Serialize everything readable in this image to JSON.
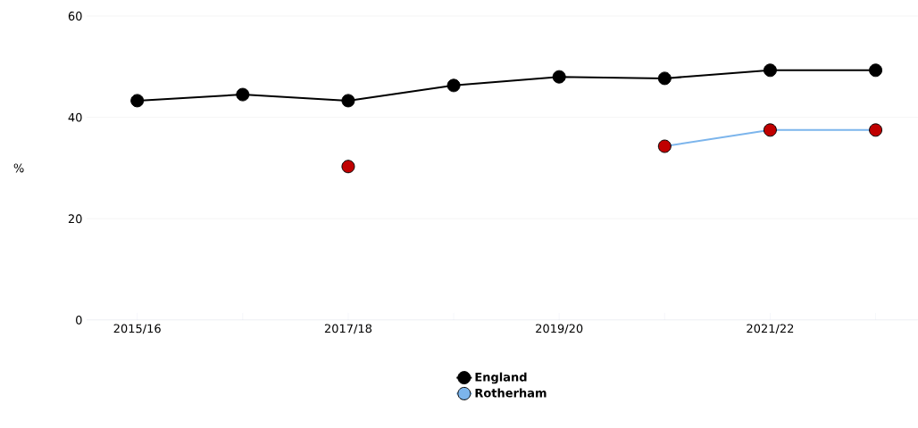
{
  "chart_data": {
    "type": "line",
    "ylabel": "%",
    "categories": [
      "2015/16",
      null,
      "2017/18",
      null,
      "2019/20",
      null,
      "2021/22",
      null
    ],
    "series": [
      {
        "name": "England",
        "color": "#000000",
        "values": [
          43.3,
          44.5,
          43.3,
          46.3,
          48.0,
          47.7,
          49.3,
          49.3
        ]
      },
      {
        "name": "Rotherham",
        "color": "#7cb5ec",
        "colors": [
          null,
          null,
          "#c00000",
          null,
          null,
          "#c00000",
          "#c00000",
          "#c00000"
        ],
        "values": [
          null,
          null,
          30.3,
          null,
          null,
          34.3,
          37.5,
          37.5
        ]
      }
    ],
    "ylim": [
      0,
      60
    ],
    "yticks": [
      0,
      20,
      40,
      60
    ],
    "grid": "y",
    "legend": "bottom",
    "marker": "circle",
    "line_style": "solid"
  }
}
